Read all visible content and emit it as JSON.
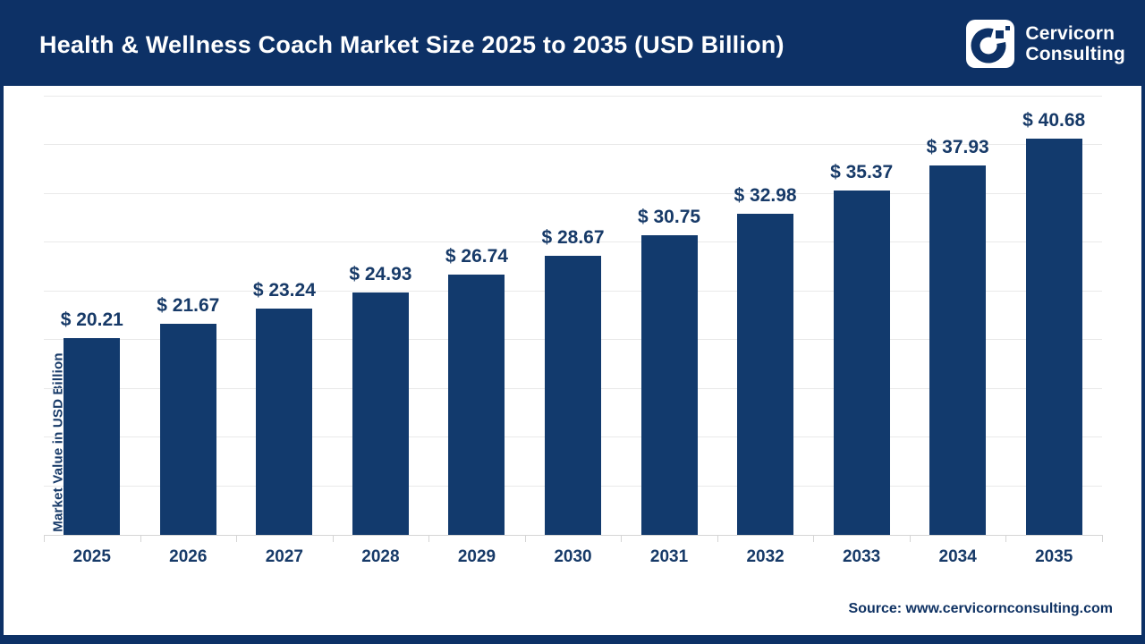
{
  "header": {
    "title": "Health & Wellness Coach Market Size 2025 to 2035 (USD Billion)",
    "logo": {
      "name_line1": "Cervicorn",
      "name_line2": "Consulting"
    }
  },
  "chart_data": {
    "type": "bar",
    "title": "Health & Wellness Coach Market Size 2025 to 2035 (USD Billion)",
    "categories": [
      "2025",
      "2026",
      "2027",
      "2028",
      "2029",
      "2030",
      "2031",
      "2032",
      "2033",
      "2034",
      "2035"
    ],
    "values": [
      20.21,
      21.67,
      23.24,
      24.93,
      26.74,
      28.67,
      30.75,
      32.98,
      35.37,
      37.93,
      40.68
    ],
    "value_labels": [
      "$ 20.21",
      "$ 21.67",
      "$ 23.24",
      "$ 24.93",
      "$ 26.74",
      "$ 28.67",
      "$ 30.75",
      "$ 32.98",
      "$ 35.37",
      "$ 37.93",
      "$ 40.68"
    ],
    "xlabel": "",
    "ylabel": "Market Value in USD Billion",
    "ylim": [
      0,
      45
    ],
    "gridline_step": 5,
    "grid": true,
    "legend": false,
    "y_tick_labels_visible": false
  },
  "footer": {
    "source": "Source: www.cervicornconsulting.com"
  },
  "colors": {
    "header_bg": "#0d3166",
    "bar": "#123a6d",
    "label_text": "#173a68",
    "gridline": "#e9e9e9",
    "axis_line": "#d5d5d5",
    "title_text": "#ffffff"
  }
}
